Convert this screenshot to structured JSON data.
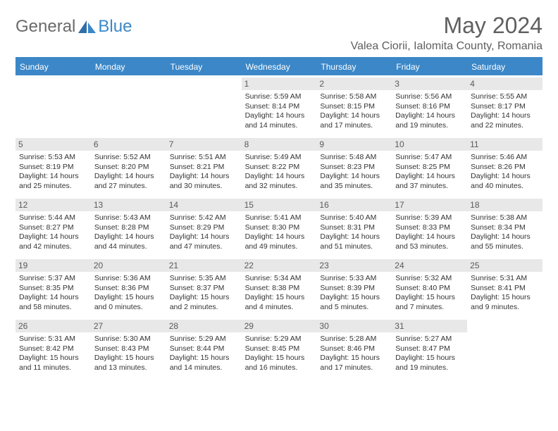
{
  "brand": {
    "word1": "General",
    "word2": "Blue"
  },
  "title": "May 2024",
  "location": "Valea Ciorii, Ialomita County, Romania",
  "colors": {
    "header_bar": "#3b87c8",
    "daynum_bg": "#e8e8e8",
    "text_gray": "#5f5f5f",
    "body_text": "#333333"
  },
  "layout": {
    "columns": 7,
    "leading_blanks": 3
  },
  "dow": [
    "Sunday",
    "Monday",
    "Tuesday",
    "Wednesday",
    "Thursday",
    "Friday",
    "Saturday"
  ],
  "days": [
    {
      "n": 1,
      "sunrise": "5:59 AM",
      "sunset": "8:14 PM",
      "day_l1": "Daylight: 14 hours",
      "day_l2": "and 14 minutes."
    },
    {
      "n": 2,
      "sunrise": "5:58 AM",
      "sunset": "8:15 PM",
      "day_l1": "Daylight: 14 hours",
      "day_l2": "and 17 minutes."
    },
    {
      "n": 3,
      "sunrise": "5:56 AM",
      "sunset": "8:16 PM",
      "day_l1": "Daylight: 14 hours",
      "day_l2": "and 19 minutes."
    },
    {
      "n": 4,
      "sunrise": "5:55 AM",
      "sunset": "8:17 PM",
      "day_l1": "Daylight: 14 hours",
      "day_l2": "and 22 minutes."
    },
    {
      "n": 5,
      "sunrise": "5:53 AM",
      "sunset": "8:19 PM",
      "day_l1": "Daylight: 14 hours",
      "day_l2": "and 25 minutes."
    },
    {
      "n": 6,
      "sunrise": "5:52 AM",
      "sunset": "8:20 PM",
      "day_l1": "Daylight: 14 hours",
      "day_l2": "and 27 minutes."
    },
    {
      "n": 7,
      "sunrise": "5:51 AM",
      "sunset": "8:21 PM",
      "day_l1": "Daylight: 14 hours",
      "day_l2": "and 30 minutes."
    },
    {
      "n": 8,
      "sunrise": "5:49 AM",
      "sunset": "8:22 PM",
      "day_l1": "Daylight: 14 hours",
      "day_l2": "and 32 minutes."
    },
    {
      "n": 9,
      "sunrise": "5:48 AM",
      "sunset": "8:23 PM",
      "day_l1": "Daylight: 14 hours",
      "day_l2": "and 35 minutes."
    },
    {
      "n": 10,
      "sunrise": "5:47 AM",
      "sunset": "8:25 PM",
      "day_l1": "Daylight: 14 hours",
      "day_l2": "and 37 minutes."
    },
    {
      "n": 11,
      "sunrise": "5:46 AM",
      "sunset": "8:26 PM",
      "day_l1": "Daylight: 14 hours",
      "day_l2": "and 40 minutes."
    },
    {
      "n": 12,
      "sunrise": "5:44 AM",
      "sunset": "8:27 PM",
      "day_l1": "Daylight: 14 hours",
      "day_l2": "and 42 minutes."
    },
    {
      "n": 13,
      "sunrise": "5:43 AM",
      "sunset": "8:28 PM",
      "day_l1": "Daylight: 14 hours",
      "day_l2": "and 44 minutes."
    },
    {
      "n": 14,
      "sunrise": "5:42 AM",
      "sunset": "8:29 PM",
      "day_l1": "Daylight: 14 hours",
      "day_l2": "and 47 minutes."
    },
    {
      "n": 15,
      "sunrise": "5:41 AM",
      "sunset": "8:30 PM",
      "day_l1": "Daylight: 14 hours",
      "day_l2": "and 49 minutes."
    },
    {
      "n": 16,
      "sunrise": "5:40 AM",
      "sunset": "8:31 PM",
      "day_l1": "Daylight: 14 hours",
      "day_l2": "and 51 minutes."
    },
    {
      "n": 17,
      "sunrise": "5:39 AM",
      "sunset": "8:33 PM",
      "day_l1": "Daylight: 14 hours",
      "day_l2": "and 53 minutes."
    },
    {
      "n": 18,
      "sunrise": "5:38 AM",
      "sunset": "8:34 PM",
      "day_l1": "Daylight: 14 hours",
      "day_l2": "and 55 minutes."
    },
    {
      "n": 19,
      "sunrise": "5:37 AM",
      "sunset": "8:35 PM",
      "day_l1": "Daylight: 14 hours",
      "day_l2": "and 58 minutes."
    },
    {
      "n": 20,
      "sunrise": "5:36 AM",
      "sunset": "8:36 PM",
      "day_l1": "Daylight: 15 hours",
      "day_l2": "and 0 minutes."
    },
    {
      "n": 21,
      "sunrise": "5:35 AM",
      "sunset": "8:37 PM",
      "day_l1": "Daylight: 15 hours",
      "day_l2": "and 2 minutes."
    },
    {
      "n": 22,
      "sunrise": "5:34 AM",
      "sunset": "8:38 PM",
      "day_l1": "Daylight: 15 hours",
      "day_l2": "and 4 minutes."
    },
    {
      "n": 23,
      "sunrise": "5:33 AM",
      "sunset": "8:39 PM",
      "day_l1": "Daylight: 15 hours",
      "day_l2": "and 5 minutes."
    },
    {
      "n": 24,
      "sunrise": "5:32 AM",
      "sunset": "8:40 PM",
      "day_l1": "Daylight: 15 hours",
      "day_l2": "and 7 minutes."
    },
    {
      "n": 25,
      "sunrise": "5:31 AM",
      "sunset": "8:41 PM",
      "day_l1": "Daylight: 15 hours",
      "day_l2": "and 9 minutes."
    },
    {
      "n": 26,
      "sunrise": "5:31 AM",
      "sunset": "8:42 PM",
      "day_l1": "Daylight: 15 hours",
      "day_l2": "and 11 minutes."
    },
    {
      "n": 27,
      "sunrise": "5:30 AM",
      "sunset": "8:43 PM",
      "day_l1": "Daylight: 15 hours",
      "day_l2": "and 13 minutes."
    },
    {
      "n": 28,
      "sunrise": "5:29 AM",
      "sunset": "8:44 PM",
      "day_l1": "Daylight: 15 hours",
      "day_l2": "and 14 minutes."
    },
    {
      "n": 29,
      "sunrise": "5:29 AM",
      "sunset": "8:45 PM",
      "day_l1": "Daylight: 15 hours",
      "day_l2": "and 16 minutes."
    },
    {
      "n": 30,
      "sunrise": "5:28 AM",
      "sunset": "8:46 PM",
      "day_l1": "Daylight: 15 hours",
      "day_l2": "and 17 minutes."
    },
    {
      "n": 31,
      "sunrise": "5:27 AM",
      "sunset": "8:47 PM",
      "day_l1": "Daylight: 15 hours",
      "day_l2": "and 19 minutes."
    }
  ],
  "labels": {
    "sunrise": "Sunrise: ",
    "sunset": "Sunset: "
  }
}
